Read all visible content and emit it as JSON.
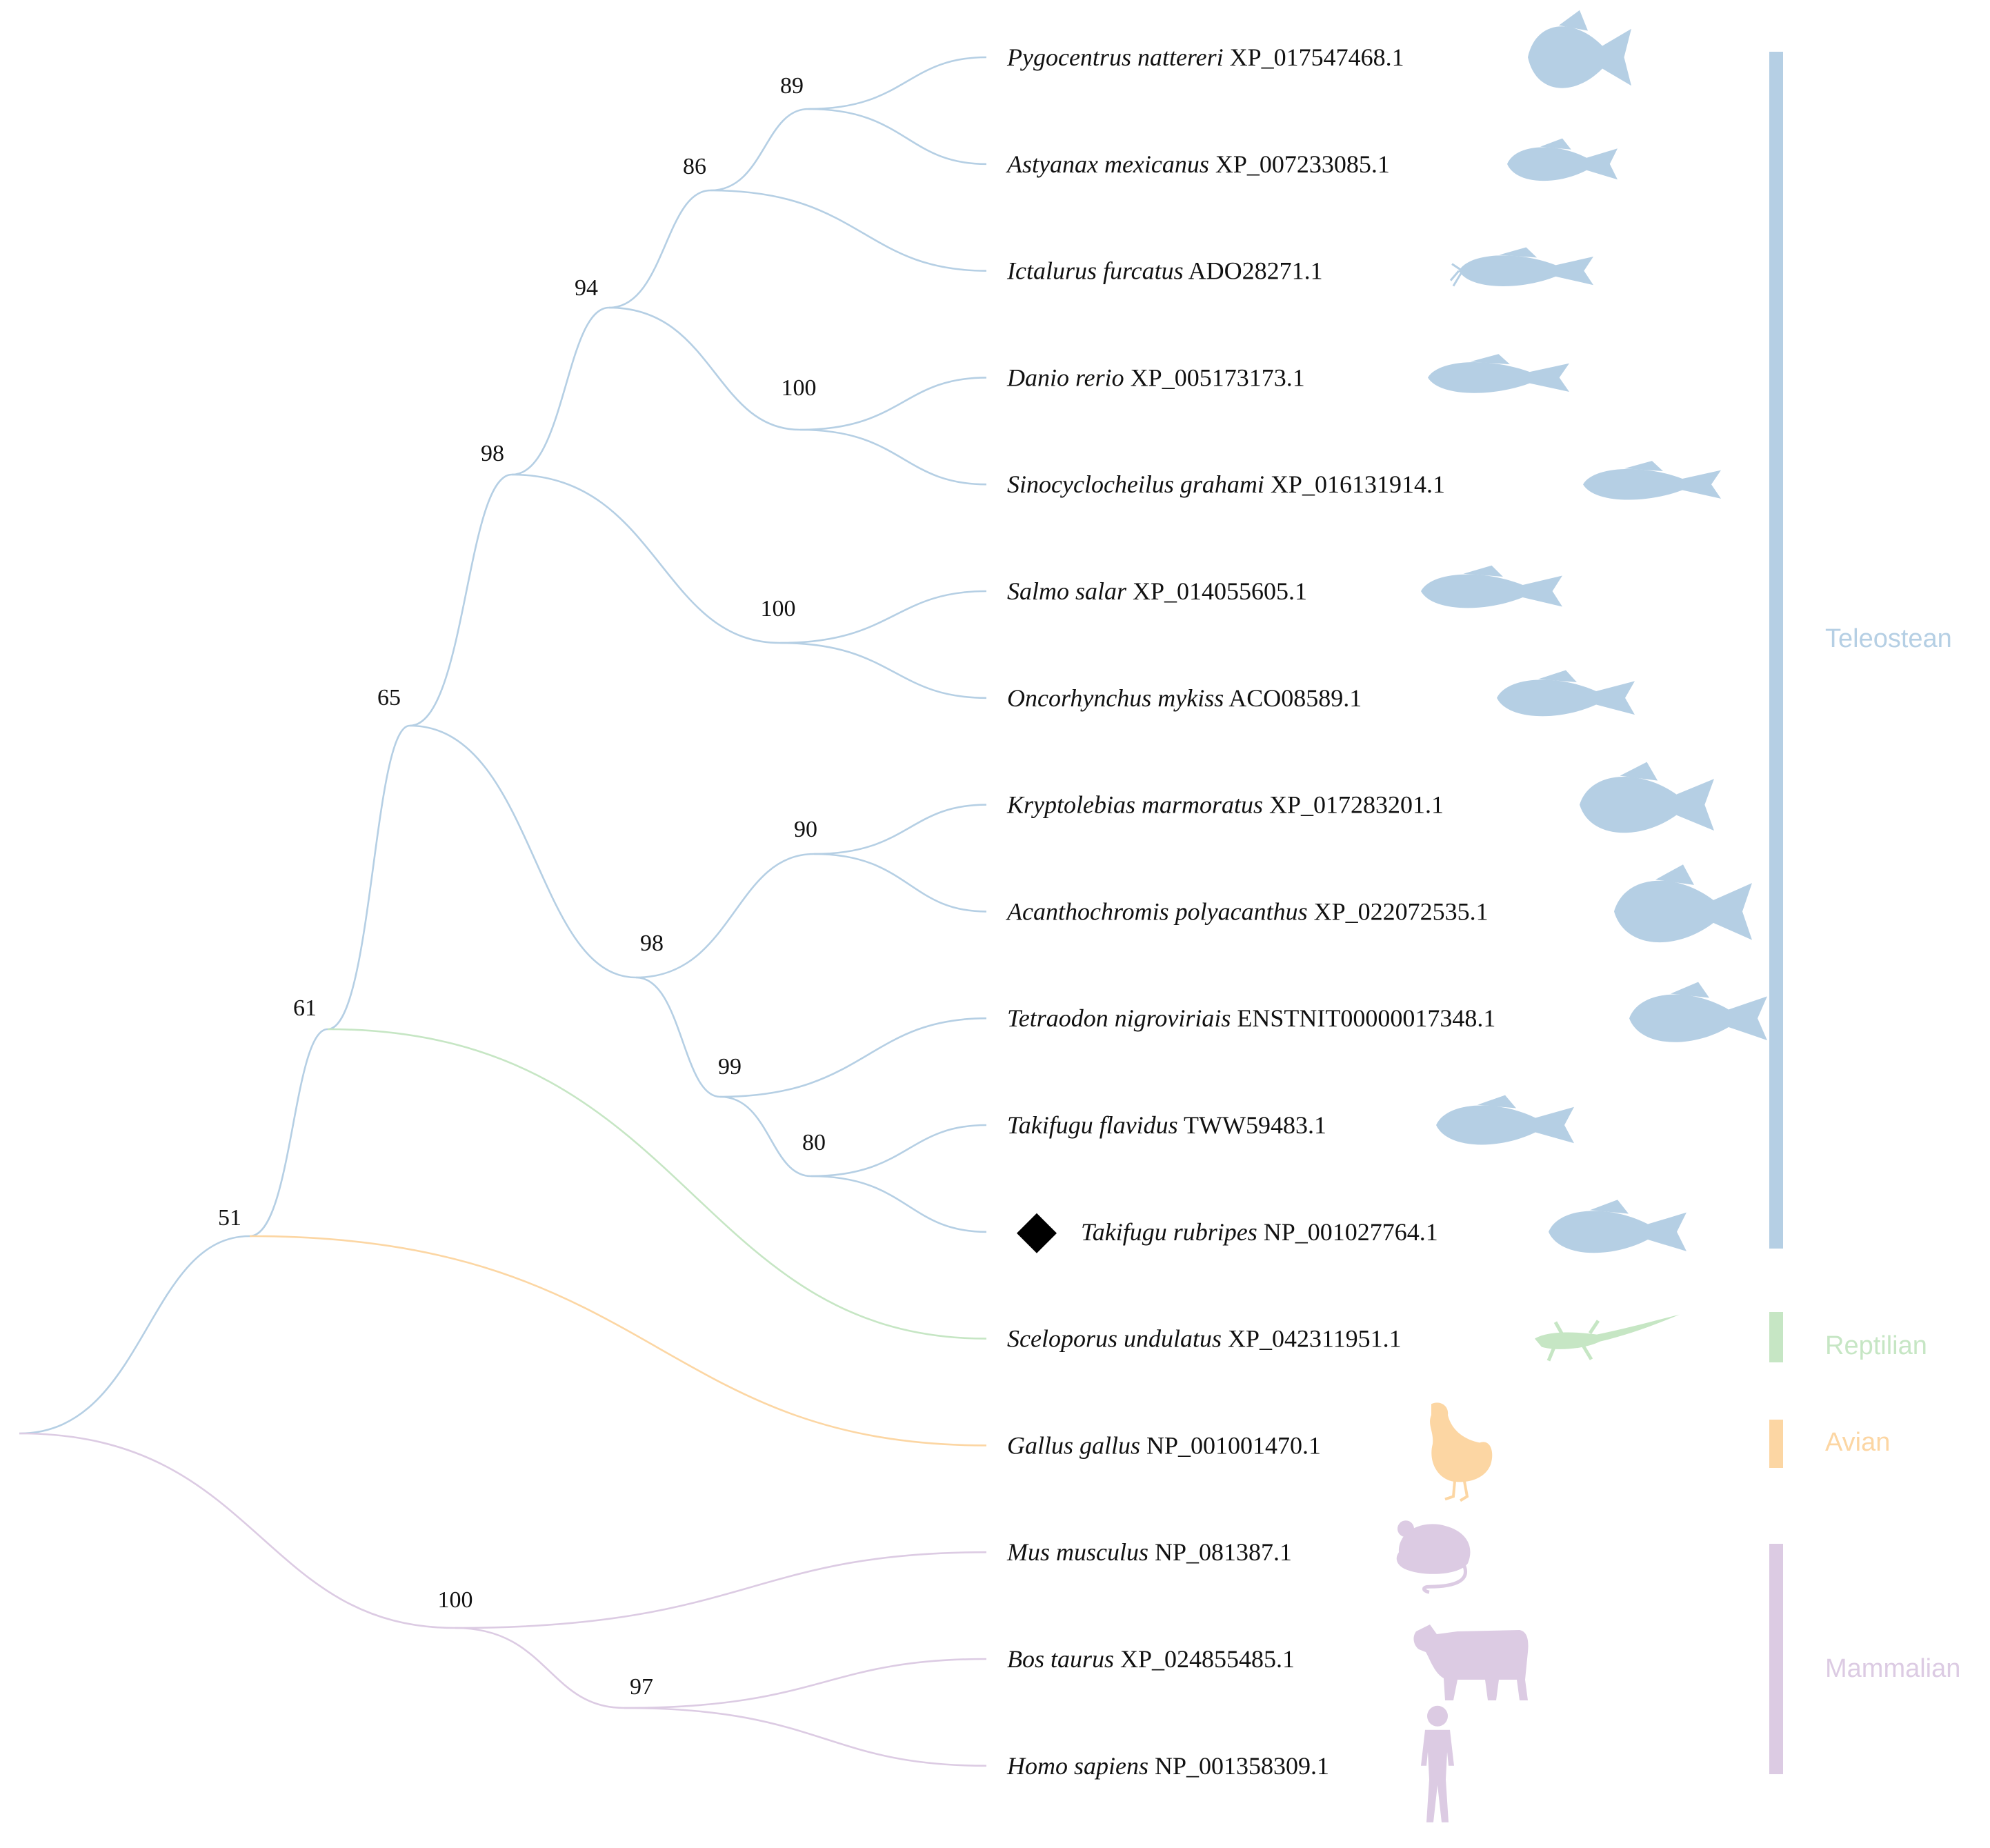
{
  "colors": {
    "teleostean": "#b5cfe4",
    "reptilian": "#c6e6c4",
    "avian": "#fcd6a3",
    "mammalian": "#dccbe3",
    "marker": "#000000"
  },
  "leaves": [
    {
      "species": "Pygocentrus nattereri",
      "accession": "XP_017547468.1",
      "group": "teleostean",
      "icon": "piranha-icon"
    },
    {
      "species": "Astyanax mexicanus",
      "accession": "XP_007233085.1",
      "group": "teleostean",
      "icon": "tetra-fish-icon"
    },
    {
      "species": "Ictalurus furcatus",
      "accession": "ADO28271.1",
      "group": "teleostean",
      "icon": "catfish-icon"
    },
    {
      "species": "Danio rerio",
      "accession": "XP_005173173.1",
      "group": "teleostean",
      "icon": "zebrafish-icon"
    },
    {
      "species": "Sinocyclocheilus grahami",
      "accession": "XP_016131914.1",
      "group": "teleostean",
      "icon": "cavefish-icon"
    },
    {
      "species": "Salmo salar",
      "accession": "XP_014055605.1",
      "group": "teleostean",
      "icon": "salmon-icon"
    },
    {
      "species": "Oncorhynchus mykiss",
      "accession": "ACO08589.1",
      "group": "teleostean",
      "icon": "trout-icon"
    },
    {
      "species": "Kryptolebias marmoratus",
      "accession": "XP_017283201.1",
      "group": "teleostean",
      "icon": "killifish-icon"
    },
    {
      "species": "Acanthochromis polyacanthus",
      "accession": "XP_022072535.1",
      "group": "teleostean",
      "icon": "damselfish-icon"
    },
    {
      "species": "Tetraodon nigroviriais",
      "accession": "ENSTNIT00000017348.1",
      "group": "teleostean",
      "icon": "pufferfish-icon"
    },
    {
      "species": "Takifugu flavidus",
      "accession": "TWW59483.1",
      "group": "teleostean",
      "icon": "fugu-icon"
    },
    {
      "species": "Takifugu rubripes",
      "accession": "NP_001027764.1",
      "group": "teleostean",
      "icon": "fugu-icon",
      "marked": true
    },
    {
      "species": "Sceloporus undulatus",
      "accession": "XP_042311951.1",
      "group": "reptilian",
      "icon": "lizard-icon"
    },
    {
      "species": "Gallus gallus",
      "accession": "NP_001001470.1",
      "group": "avian",
      "icon": "chicken-icon"
    },
    {
      "species": "Mus musculus",
      "accession": "NP_081387.1",
      "group": "mammalian",
      "icon": "mouse-icon"
    },
    {
      "species": "Bos taurus",
      "accession": "XP_024855485.1",
      "group": "mammalian",
      "icon": "cow-icon"
    },
    {
      "species": "Homo sapiens",
      "accession": "NP_001358309.1",
      "group": "mammalian",
      "icon": "human-icon"
    }
  ],
  "nodes": [
    {
      "id": "n89",
      "bootstrap": "89",
      "group": "teleostean",
      "children": [
        "L0",
        "L1"
      ]
    },
    {
      "id": "n86",
      "bootstrap": "86",
      "group": "teleostean",
      "children": [
        "n89",
        "L2"
      ]
    },
    {
      "id": "n100a",
      "bootstrap": "100",
      "group": "teleostean",
      "children": [
        "L3",
        "L4"
      ]
    },
    {
      "id": "n94",
      "bootstrap": "94",
      "group": "teleostean",
      "children": [
        "n86",
        "n100a"
      ]
    },
    {
      "id": "n100b",
      "bootstrap": "100",
      "group": "teleostean",
      "children": [
        "L5",
        "L6"
      ]
    },
    {
      "id": "n98a",
      "bootstrap": "98",
      "group": "teleostean",
      "children": [
        "n94",
        "n100b"
      ]
    },
    {
      "id": "n90",
      "bootstrap": "90",
      "group": "teleostean",
      "children": [
        "L7",
        "L8"
      ]
    },
    {
      "id": "n80",
      "bootstrap": "80",
      "group": "teleostean",
      "children": [
        "L10",
        "L11"
      ]
    },
    {
      "id": "n99",
      "bootstrap": "99",
      "group": "teleostean",
      "children": [
        "L9",
        "n80"
      ]
    },
    {
      "id": "n98b",
      "bootstrap": "98",
      "group": "teleostean",
      "children": [
        "n90",
        "n99"
      ]
    },
    {
      "id": "n65",
      "bootstrap": "65",
      "group": "teleostean",
      "children": [
        "n98a",
        "n98b"
      ]
    },
    {
      "id": "n61",
      "bootstrap": "61",
      "group": "teleostean",
      "children": [
        "n65",
        "L12"
      ]
    },
    {
      "id": "n51",
      "bootstrap": "51",
      "group": "teleostean",
      "children": [
        "n61",
        "L13"
      ]
    },
    {
      "id": "n97",
      "bootstrap": "97",
      "group": "mammalian",
      "children": [
        "L15",
        "L16"
      ]
    },
    {
      "id": "n100c",
      "bootstrap": "100",
      "group": "mammalian",
      "children": [
        "L14",
        "n97"
      ]
    },
    {
      "id": "root",
      "bootstrap": "",
      "group": "teleostean",
      "children": [
        "n51",
        "n100c"
      ]
    }
  ],
  "groups": [
    {
      "key": "teleostean",
      "label": "Teleostean"
    },
    {
      "key": "reptilian",
      "label": "Reptilian"
    },
    {
      "key": "avian",
      "label": "Avian"
    },
    {
      "key": "mammalian",
      "label": "Mammalian"
    }
  ]
}
